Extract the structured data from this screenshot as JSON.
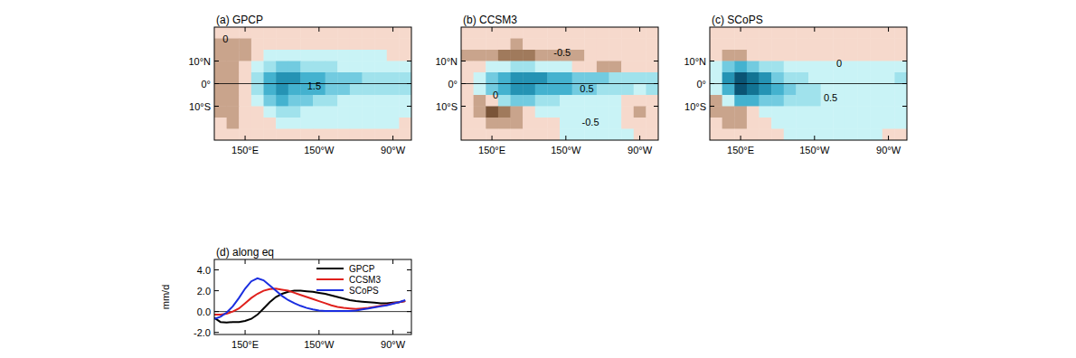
{
  "chart_data": [
    {
      "type": "heatmap",
      "title": "(a) GPCP",
      "x": [
        130,
        140,
        150,
        160,
        170,
        180,
        190,
        200,
        210,
        220,
        230,
        240,
        250,
        260,
        270,
        280
      ],
      "y": [
        22.5,
        17.5,
        12.5,
        7.5,
        2.5,
        -2.5,
        -7.5,
        -12.5,
        -17.5,
        -22.5
      ],
      "values": [
        [
          -0.2,
          -0.3,
          -0.3,
          -0.2,
          -0.2,
          -0.1,
          -0.1,
          -0.1,
          -0.1,
          -0.1,
          -0.1,
          -0.1,
          -0.1,
          -0.1,
          -0.2,
          -0.2
        ],
        [
          -0.6,
          -0.8,
          -0.6,
          -0.3,
          -0.2,
          -0.1,
          -0.1,
          -0.1,
          -0.1,
          -0.1,
          -0.1,
          -0.1,
          -0.1,
          -0.1,
          -0.2,
          -0.3
        ],
        [
          -0.8,
          -0.9,
          -0.7,
          -0.3,
          0.1,
          0.2,
          0.2,
          0.1,
          0.1,
          0.1,
          0.1,
          0.1,
          0.1,
          0,
          -0.1,
          -0.2
        ],
        [
          -0.7,
          -0.7,
          -0.3,
          0.3,
          0.8,
          1.0,
          1.0,
          0.8,
          0.6,
          0.5,
          0.4,
          0.4,
          0.4,
          0.3,
          0.2,
          0.1
        ],
        [
          -1.0,
          -0.9,
          -0.2,
          0.8,
          1.8,
          2.1,
          2.0,
          1.8,
          1.6,
          1.4,
          1.2,
          1.0,
          0.9,
          0.8,
          0.8,
          0.9
        ],
        [
          -0.9,
          -0.8,
          -0.1,
          0.8,
          1.8,
          2.1,
          1.9,
          1.7,
          1.5,
          1.3,
          1.1,
          0.9,
          0.8,
          0.7,
          0.7,
          0.6
        ],
        [
          -0.6,
          -0.6,
          -0.2,
          0.4,
          1.2,
          1.5,
          1.3,
          1.0,
          0.7,
          0.5,
          0.4,
          0.3,
          0.3,
          0.2,
          0.2,
          0.1
        ],
        [
          -0.7,
          -0.8,
          -0.5,
          -0.2,
          0.3,
          0.6,
          0.5,
          0.3,
          0.2,
          0.2,
          0.2,
          0.1,
          0.1,
          0.1,
          0,
          0
        ],
        [
          -0.5,
          -0.6,
          -0.5,
          -0.4,
          -0.1,
          0.1,
          0.1,
          0.1,
          0.1,
          0.1,
          0.1,
          0.1,
          0.1,
          0,
          0,
          -0.1
        ],
        [
          -0.3,
          -0.4,
          -0.3,
          -0.2,
          -0.1,
          -0.1,
          -0.1,
          -0.1,
          -0.1,
          -0.1,
          -0.1,
          -0.1,
          -0.1,
          -0.1,
          -0.1,
          -0.1
        ]
      ],
      "levels": [
        -1.5,
        -1,
        -0.5,
        0,
        0.5,
        1,
        1.5,
        2,
        2.5,
        3
      ],
      "colors": [
        "#7a5438",
        "#a07a5c",
        "#c9a48c",
        "#f6d9cc",
        "#c9f3f6",
        "#a0e2ec",
        "#72cbe0",
        "#44b2cf",
        "#2593b4",
        "#127393",
        "#0a5474"
      ],
      "xlim": [
        125,
        285
      ],
      "ylim": [
        -25,
        25
      ],
      "xticks": [
        {
          "value": 150,
          "label": "150°E"
        },
        {
          "value": 210,
          "label": "150°W"
        },
        {
          "value": 270,
          "label": "90°W"
        }
      ],
      "yticks": [
        {
          "value": 10,
          "label": "10°N"
        },
        {
          "value": 0,
          "label": "0°"
        },
        {
          "value": -10,
          "label": "10°S"
        }
      ],
      "annotations": [
        {
          "text": "0",
          "x": 134,
          "y": 20
        },
        {
          "text": "1.5",
          "x": 206,
          "y": -1
        }
      ]
    },
    {
      "type": "heatmap",
      "title": "(b) CCSM3",
      "x": [
        130,
        140,
        150,
        160,
        170,
        180,
        190,
        200,
        210,
        220,
        230,
        240,
        250,
        260,
        270,
        280
      ],
      "y": [
        22.5,
        17.5,
        12.5,
        7.5,
        2.5,
        -2.5,
        -7.5,
        -12.5,
        -17.5,
        -22.5
      ],
      "values": [
        [
          -0.1,
          -0.2,
          -0.2,
          -0.2,
          -0.2,
          -0.2,
          -0.2,
          -0.2,
          -0.2,
          -0.2,
          -0.2,
          -0.2,
          -0.1,
          -0.1,
          -0.1,
          -0.1
        ],
        [
          -0.3,
          -0.4,
          -0.5,
          -0.5,
          -0.6,
          -0.5,
          -0.4,
          -0.4,
          -0.4,
          -0.3,
          -0.3,
          -0.3,
          -0.3,
          -0.2,
          -0.2,
          -0.2
        ],
        [
          -0.6,
          -0.8,
          -1.0,
          -1.2,
          -1.4,
          -1.2,
          -1.0,
          -0.8,
          -0.7,
          -0.6,
          -0.5,
          -0.5,
          -0.5,
          -0.4,
          -0.3,
          -0.2
        ],
        [
          -0.3,
          -0.2,
          0.2,
          0.4,
          0.5,
          0.5,
          0.4,
          0.2,
          0,
          -0.2,
          -0.4,
          -0.6,
          -0.6,
          -0.5,
          -0.3,
          -0.2
        ],
        [
          -0.2,
          0.4,
          1.2,
          1.9,
          2.2,
          2.2,
          2.0,
          1.8,
          1.5,
          1.3,
          1.1,
          1.0,
          0.7,
          0.5,
          0.5,
          0.6
        ],
        [
          -0.2,
          0.3,
          1.0,
          1.6,
          2.0,
          2.1,
          1.9,
          1.7,
          1.5,
          1.3,
          1.1,
          0.9,
          0.7,
          0.5,
          0.4,
          0.5
        ],
        [
          -0.4,
          -0.6,
          -0.2,
          0.8,
          1.3,
          1.2,
          0.9,
          0.6,
          0.4,
          0.3,
          0.2,
          0.1,
          0,
          -0.2,
          -0.3,
          -0.4
        ],
        [
          -0.3,
          -1.0,
          -1.6,
          -1.4,
          -0.6,
          -0.2,
          0.1,
          0.2,
          0.2,
          0.2,
          0.1,
          0.1,
          0,
          -0.3,
          -0.6,
          -0.5
        ],
        [
          -0.2,
          -0.5,
          -0.8,
          -0.8,
          -0.6,
          -0.4,
          -0.3,
          -0.1,
          0,
          0,
          0.1,
          0.1,
          0.1,
          -0.1,
          -0.2,
          -0.2
        ],
        [
          -0.1,
          -0.2,
          -0.3,
          -0.3,
          -0.3,
          -0.3,
          -0.2,
          -0.1,
          0,
          0,
          0,
          0,
          0,
          0,
          -0.1,
          -0.1
        ]
      ],
      "levels": [
        -1.5,
        -1,
        -0.5,
        0,
        0.5,
        1,
        1.5,
        2,
        2.5,
        3
      ],
      "colors": [
        "#7a5438",
        "#a07a5c",
        "#c9a48c",
        "#f6d9cc",
        "#c9f3f6",
        "#a0e2ec",
        "#72cbe0",
        "#44b2cf",
        "#2593b4",
        "#127393",
        "#0a5474"
      ],
      "xlim": [
        125,
        285
      ],
      "ylim": [
        -25,
        25
      ],
      "xticks": [
        {
          "value": 150,
          "label": "150°E"
        },
        {
          "value": 210,
          "label": "150°W"
        },
        {
          "value": 270,
          "label": "90°W"
        }
      ],
      "yticks": [
        {
          "value": 10,
          "label": "10°N"
        },
        {
          "value": 0,
          "label": "0°"
        },
        {
          "value": -10,
          "label": "10°S"
        }
      ],
      "annotations": [
        {
          "text": "-0.5",
          "x": 207,
          "y": 14
        },
        {
          "text": "0.5",
          "x": 227,
          "y": -2
        },
        {
          "text": "-0.5",
          "x": 230,
          "y": -17
        },
        {
          "text": "0",
          "x": 153,
          "y": -5
        }
      ]
    },
    {
      "type": "heatmap",
      "title": "(c) SCoPS",
      "x": [
        130,
        140,
        150,
        160,
        170,
        180,
        190,
        200,
        210,
        220,
        230,
        240,
        250,
        260,
        270,
        280
      ],
      "y": [
        22.5,
        17.5,
        12.5,
        7.5,
        2.5,
        -2.5,
        -7.5,
        -12.5,
        -17.5,
        -22.5
      ],
      "values": [
        [
          -0.1,
          -0.1,
          -0.1,
          -0.1,
          -0.1,
          -0.1,
          -0.1,
          -0.1,
          -0.1,
          -0.1,
          -0.1,
          -0.1,
          -0.1,
          -0.1,
          -0.1,
          -0.1
        ],
        [
          -0.3,
          -0.5,
          -0.5,
          -0.4,
          -0.3,
          -0.2,
          -0.2,
          -0.2,
          -0.2,
          -0.2,
          -0.2,
          -0.2,
          -0.2,
          -0.1,
          -0.1,
          -0.1
        ],
        [
          -0.5,
          -0.8,
          -0.6,
          -0.4,
          -0.2,
          -0.1,
          -0.1,
          -0.1,
          -0.1,
          -0.1,
          -0.1,
          -0.1,
          -0.1,
          -0.1,
          -0.1,
          -0.1
        ],
        [
          0.2,
          1.2,
          1.6,
          1.3,
          0.9,
          0.5,
          0.3,
          0.1,
          0,
          0,
          0,
          0,
          0,
          0,
          0,
          0
        ],
        [
          0.3,
          2.2,
          3.2,
          2.8,
          2.0,
          1.3,
          0.9,
          0.6,
          0.4,
          0.3,
          0.3,
          0.3,
          0.3,
          0.3,
          0.4,
          0.5
        ],
        [
          0.0,
          1.8,
          3.0,
          2.6,
          2.0,
          1.5,
          1.0,
          0.7,
          0.5,
          0.4,
          0.3,
          0.3,
          0.3,
          0.3,
          0.3,
          0.4
        ],
        [
          -0.6,
          0.4,
          1.5,
          1.6,
          1.3,
          1.0,
          0.8,
          0.6,
          0.5,
          0.4,
          0.3,
          0.3,
          0.3,
          0.3,
          0.3,
          0.2
        ],
        [
          -0.8,
          -1.0,
          -0.8,
          -0.3,
          0.1,
          0.3,
          0.3,
          0.3,
          0.3,
          0.2,
          0.2,
          0.2,
          0.2,
          0.2,
          0.1,
          0.1
        ],
        [
          -0.4,
          -0.6,
          -0.6,
          -0.4,
          -0.2,
          0,
          0.1,
          0.1,
          0.1,
          0.1,
          0.1,
          0.1,
          0.1,
          0,
          0,
          0
        ],
        [
          -0.2,
          -0.3,
          -0.3,
          -0.2,
          -0.1,
          -0.1,
          0,
          0,
          0,
          0,
          0,
          0,
          0,
          0,
          -0.1,
          -0.1
        ]
      ],
      "levels": [
        -1.5,
        -1,
        -0.5,
        0,
        0.5,
        1,
        1.5,
        2,
        2.5,
        3
      ],
      "colors": [
        "#7a5438",
        "#a07a5c",
        "#c9a48c",
        "#f6d9cc",
        "#c9f3f6",
        "#a0e2ec",
        "#72cbe0",
        "#44b2cf",
        "#2593b4",
        "#127393",
        "#0a5474"
      ],
      "xlim": [
        125,
        285
      ],
      "ylim": [
        -25,
        25
      ],
      "xticks": [
        {
          "value": 150,
          "label": "150°E"
        },
        {
          "value": 210,
          "label": "150°W"
        },
        {
          "value": 270,
          "label": "90°W"
        }
      ],
      "yticks": [
        {
          "value": 10,
          "label": "10°N"
        },
        {
          "value": 0,
          "label": "0°"
        },
        {
          "value": -10,
          "label": "10°S"
        }
      ],
      "annotations": [
        {
          "text": "0",
          "x": 230,
          "y": 9
        },
        {
          "text": "0.5",
          "x": 223,
          "y": -6
        }
      ]
    },
    {
      "type": "line",
      "title": "(d) along eq",
      "y_label": "mm/d",
      "x": [
        125,
        130,
        135,
        140,
        145,
        150,
        155,
        160,
        165,
        170,
        175,
        180,
        185,
        190,
        195,
        200,
        205,
        210,
        215,
        220,
        225,
        230,
        235,
        240,
        245,
        250,
        255,
        260,
        265,
        270,
        275,
        280
      ],
      "series": [
        {
          "name": "GPCP",
          "color": "#000000",
          "values": [
            -0.6,
            -1.0,
            -1.05,
            -1.0,
            -1.0,
            -0.9,
            -0.7,
            -0.3,
            0.3,
            0.9,
            1.4,
            1.7,
            1.9,
            2.0,
            2.0,
            1.95,
            1.9,
            1.8,
            1.7,
            1.55,
            1.4,
            1.25,
            1.1,
            1.0,
            0.95,
            0.9,
            0.85,
            0.8,
            0.8,
            0.85,
            0.9,
            1.0
          ]
        },
        {
          "name": "CCSM3",
          "color": "#e0201c",
          "values": [
            -0.3,
            -0.3,
            -0.2,
            0,
            0.3,
            0.8,
            1.3,
            1.7,
            2.0,
            2.15,
            2.2,
            2.1,
            2.0,
            1.8,
            1.6,
            1.4,
            1.2,
            1.0,
            0.8,
            0.6,
            0.45,
            0.35,
            0.3,
            0.25,
            0.3,
            0.35,
            0.45,
            0.55,
            0.65,
            0.8,
            0.9,
            1.0
          ]
        },
        {
          "name": "SCoPS",
          "color": "#1a2ee0",
          "values": [
            -0.7,
            -0.5,
            -0.1,
            0.5,
            1.3,
            2.2,
            2.9,
            3.2,
            3.0,
            2.5,
            2.0,
            1.5,
            1.1,
            0.8,
            0.55,
            0.35,
            0.2,
            0.1,
            0.05,
            0.05,
            0.05,
            0.05,
            0.05,
            0.1,
            0.2,
            0.3,
            0.4,
            0.5,
            0.6,
            0.75,
            0.9,
            1.1
          ]
        }
      ],
      "xlim": [
        125,
        285
      ],
      "ylim": [
        -2.2,
        5
      ],
      "xticks": [
        {
          "value": 150,
          "label": "150°E"
        },
        {
          "value": 210,
          "label": "150°W"
        },
        {
          "value": 270,
          "label": "90°W"
        }
      ],
      "yticks": [
        {
          "value": -2,
          "label": "-2.0"
        },
        {
          "value": 0,
          "label": "0.0"
        },
        {
          "value": 2,
          "label": "2.0"
        },
        {
          "value": 4,
          "label": "4.0"
        }
      ],
      "legend": "upper right"
    }
  ]
}
